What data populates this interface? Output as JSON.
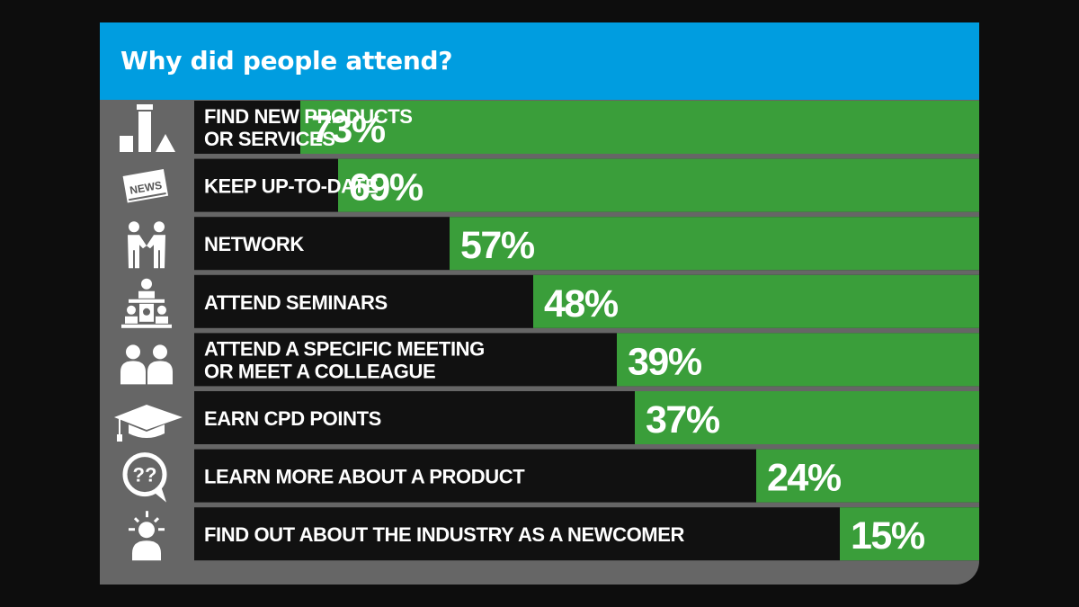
{
  "chart_data": {
    "type": "bar",
    "orientation": "horizontal",
    "title": "Why did people attend?",
    "categories": [
      "FIND NEW PRODUCTS\nOR SERVICES",
      "KEEP UP-TO-DATE",
      "NETWORK",
      "ATTEND SEMINARS",
      "ATTEND A SPECIFIC MEETING\nOR MEET A COLLEAGUE",
      "EARN CPD POINTS",
      "LEARN MORE ABOUT A PRODUCT",
      "FIND OUT ABOUT THE INDUSTRY AS A NEWCOMER"
    ],
    "values": [
      73,
      69,
      57,
      48,
      39,
      37,
      24,
      15
    ],
    "value_labels": [
      "73%",
      "69%",
      "57%",
      "48%",
      "39%",
      "37%",
      "24%",
      "15%"
    ],
    "icons": [
      "products-icon",
      "news-icon",
      "handshake-icon",
      "seminar-icon",
      "meeting-icon",
      "graduation-cap-icon",
      "question-bubble-icon",
      "lightbulb-person-icon"
    ],
    "icon_text": {
      "news": "NEWS",
      "question": "??"
    },
    "xlim": [
      0,
      100
    ],
    "grid": false,
    "legend": "none",
    "colors": {
      "background": "#0d0d0d",
      "panel": "#666666",
      "header": "#009de0",
      "bar": "#3a9e3a",
      "label_bg": "#111111",
      "text": "#ffffff"
    }
  }
}
